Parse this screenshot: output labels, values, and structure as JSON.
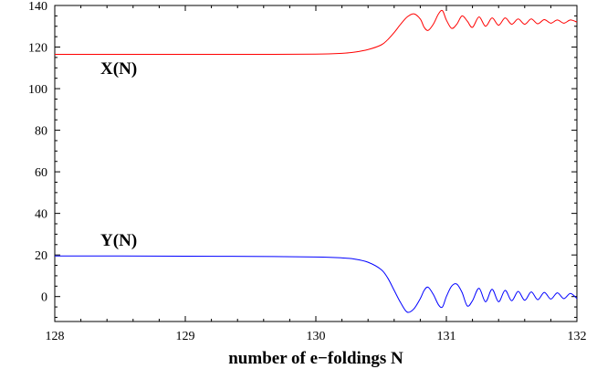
{
  "chart_data": {
    "type": "line",
    "title": "",
    "xlabel": "number of e−foldings N",
    "ylabel": "",
    "xlim": [
      128,
      132
    ],
    "ylim": [
      -12,
      140
    ],
    "xticks": [
      128,
      129,
      130,
      131,
      132
    ],
    "yticks": [
      0,
      20,
      40,
      60,
      80,
      100,
      120,
      140
    ],
    "grid": false,
    "series": [
      {
        "name": "X(N)",
        "color": "#ff0000",
        "x": [
          128.0,
          128.5,
          129.0,
          129.5,
          130.0,
          130.2,
          130.3,
          130.4,
          130.5,
          130.55,
          130.6,
          130.65,
          130.7,
          130.75,
          130.8,
          130.83,
          130.86,
          130.9,
          130.94,
          130.97,
          131.0,
          131.04,
          131.08,
          131.12,
          131.16,
          131.2,
          131.25,
          131.3,
          131.35,
          131.4,
          131.45,
          131.5,
          131.55,
          131.6,
          131.65,
          131.7,
          131.75,
          131.8,
          131.85,
          131.9,
          131.95,
          132.0
        ],
        "y": [
          116.5,
          116.5,
          116.5,
          116.5,
          116.6,
          117.0,
          117.6,
          118.8,
          121.0,
          123.5,
          127.0,
          131.0,
          134.5,
          136.0,
          133.5,
          129.5,
          128.0,
          131.0,
          136.0,
          137.5,
          133.0,
          129.0,
          131.0,
          135.0,
          132.5,
          129.5,
          134.5,
          130.0,
          134.0,
          130.5,
          134.0,
          131.0,
          133.5,
          131.0,
          133.5,
          131.2,
          133.2,
          131.5,
          133.0,
          131.5,
          133.0,
          132.0
        ]
      },
      {
        "name": "Y(N)",
        "color": "#0000ff",
        "x": [
          128.0,
          128.5,
          129.0,
          129.5,
          130.0,
          130.2,
          130.3,
          130.4,
          130.5,
          130.55,
          130.6,
          130.65,
          130.7,
          130.75,
          130.8,
          130.83,
          130.86,
          130.9,
          130.94,
          130.97,
          131.0,
          131.04,
          131.08,
          131.12,
          131.16,
          131.2,
          131.25,
          131.3,
          131.35,
          131.4,
          131.45,
          131.5,
          131.55,
          131.6,
          131.65,
          131.7,
          131.75,
          131.8,
          131.85,
          131.9,
          131.95,
          132.0
        ],
        "y": [
          19.5,
          19.5,
          19.4,
          19.3,
          19.0,
          18.6,
          18.0,
          16.5,
          13.0,
          9.0,
          3.0,
          -3.0,
          -7.5,
          -6.0,
          -1.0,
          3.0,
          4.5,
          1.0,
          -4.0,
          -5.0,
          0.0,
          5.0,
          6.0,
          2.0,
          -4.5,
          -2.0,
          4.0,
          -2.5,
          3.5,
          -2.5,
          3.0,
          -2.0,
          2.5,
          -1.8,
          2.2,
          -1.5,
          2.0,
          -1.2,
          1.8,
          -1.0,
          1.5,
          -1.0
        ]
      }
    ],
    "annotations": [
      {
        "text": "X(N)",
        "x": 128.35,
        "y": 107
      },
      {
        "text": "Y(N)",
        "x": 128.35,
        "y": 24.5
      }
    ]
  }
}
